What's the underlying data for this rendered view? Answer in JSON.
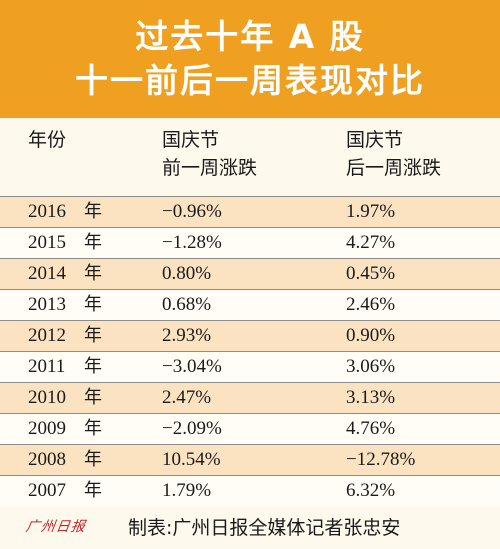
{
  "header": {
    "title_line1": "过去十年 A 股",
    "title_line2": "十一前后一周表现对比"
  },
  "table": {
    "columns": [
      {
        "line1": "年份",
        "line2": ""
      },
      {
        "line1": "国庆节",
        "line2": "前一周涨跌"
      },
      {
        "line1": "国庆节",
        "line2": "后一周涨跌"
      }
    ],
    "year_unit": "年",
    "rows": [
      {
        "year": "2016",
        "before": "−0.96%",
        "after": "1.97%"
      },
      {
        "year": "2015",
        "before": "−1.28%",
        "after": "4.27%"
      },
      {
        "year": "2014",
        "before": "0.80%",
        "after": "0.45%"
      },
      {
        "year": "2013",
        "before": "0.68%",
        "after": "2.46%"
      },
      {
        "year": "2012",
        "before": "2.93%",
        "after": "0.90%"
      },
      {
        "year": "2011",
        "before": "−3.04%",
        "after": "3.06%"
      },
      {
        "year": "2010",
        "before": "2.47%",
        "after": "3.13%"
      },
      {
        "year": "2009",
        "before": "−2.09%",
        "after": "4.76%"
      },
      {
        "year": "2008",
        "before": "10.54%",
        "after": "−12.78%"
      },
      {
        "year": "2007",
        "before": "1.79%",
        "after": "6.32%"
      }
    ]
  },
  "footer": {
    "logo_text": "广州日报",
    "credit": "制表:广州日报全媒体记者张忠安"
  },
  "colors": {
    "header_bg": "#f0a020",
    "row_stripe": "#fbe3c2",
    "logo_red": "#c8242a"
  }
}
